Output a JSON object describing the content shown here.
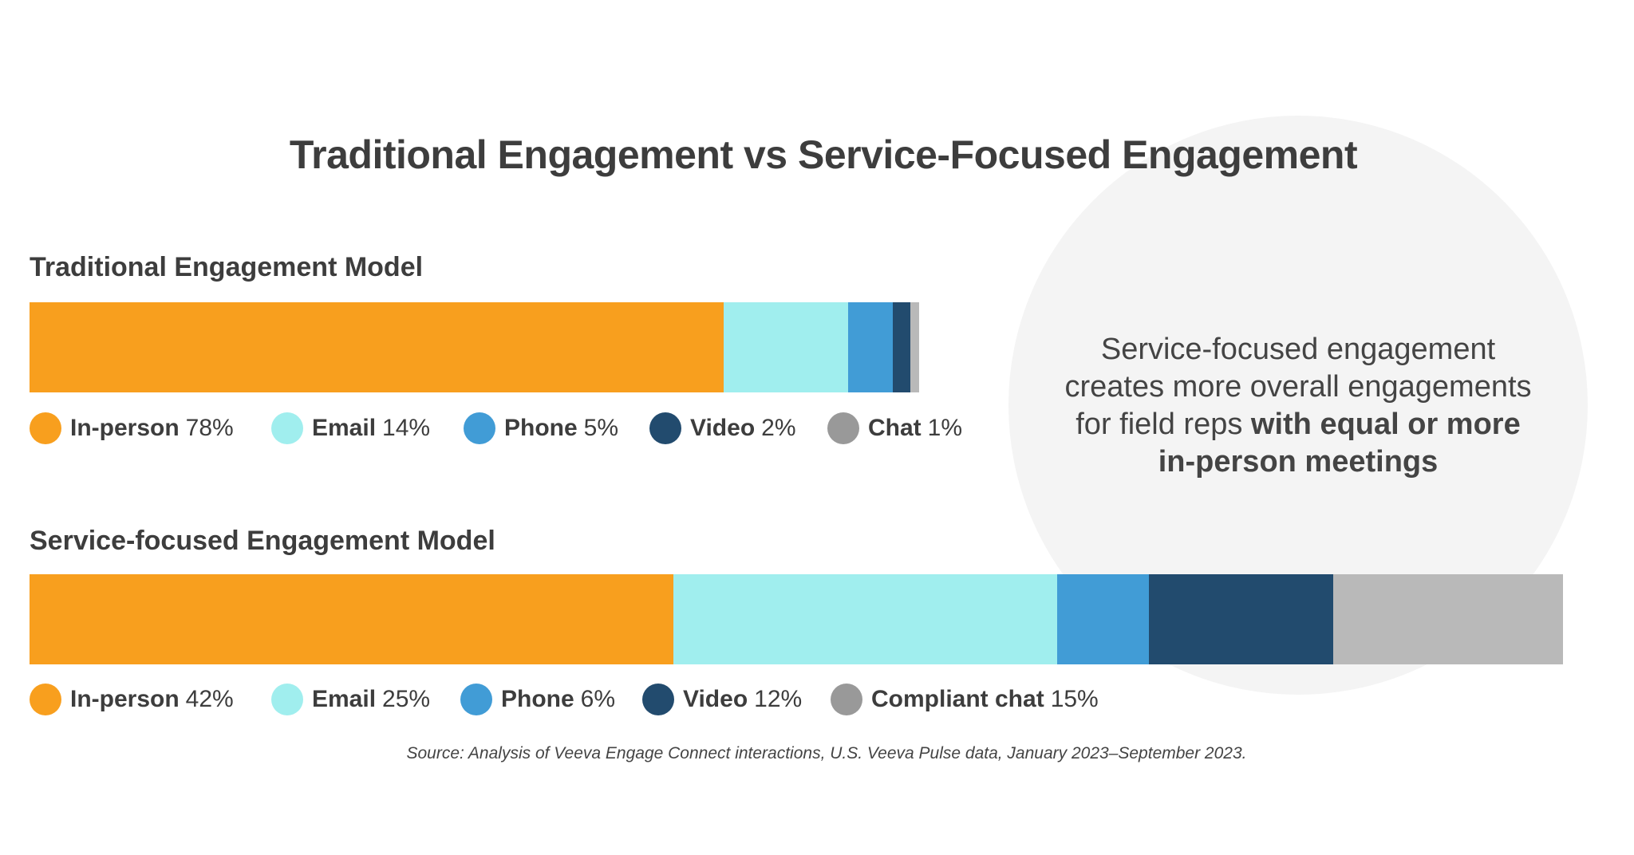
{
  "chart_data": {
    "type": "bar",
    "orientation": "horizontal-stacked",
    "title": "Traditional Engagement vs Service-Focused Engagement",
    "colors": {
      "in_person": "#F89F1E",
      "email": "#A0EEEE",
      "phone": "#419CD6",
      "video": "#224B6E",
      "chat": "#B9B9B9",
      "chat_legend": "#999999"
    },
    "charts": [
      {
        "title": "Traditional Engagement Model",
        "segments": [
          {
            "label": "In-person",
            "value": 78,
            "pct": "78%",
            "color_key": "in_person"
          },
          {
            "label": "Email",
            "value": 14,
            "pct": "14%",
            "color_key": "email"
          },
          {
            "label": "Phone",
            "value": 5,
            "pct": "5%",
            "color_key": "phone"
          },
          {
            "label": "Video",
            "value": 2,
            "pct": "2%",
            "color_key": "video"
          },
          {
            "label": "Chat",
            "value": 1,
            "pct": "1%",
            "color_key": "chat"
          }
        ]
      },
      {
        "title": "Service-focused Engagement Model",
        "segments": [
          {
            "label": "In-person",
            "value": 42,
            "pct": "42%",
            "color_key": "in_person"
          },
          {
            "label": "Email",
            "value": 25,
            "pct": "25%",
            "color_key": "email"
          },
          {
            "label": "Phone",
            "value": 6,
            "pct": "6%",
            "color_key": "phone"
          },
          {
            "label": "Video",
            "value": 12,
            "pct": "12%",
            "color_key": "video"
          },
          {
            "label": "Compliant chat",
            "value": 15,
            "pct": "15%",
            "color_key": "chat"
          }
        ]
      }
    ],
    "legend_placement": "below each bar",
    "grid": false
  },
  "callout": {
    "line1": "Service-focused engagement",
    "line2": "creates more overall engagements",
    "line3_regular": "for field reps ",
    "line3_bold": "with equal or more",
    "line4_bold": "in-person meetings"
  },
  "source": "Source: Analysis of Veeva Engage Connect interactions, U.S. Veeva Pulse data, January 2023–September 2023."
}
